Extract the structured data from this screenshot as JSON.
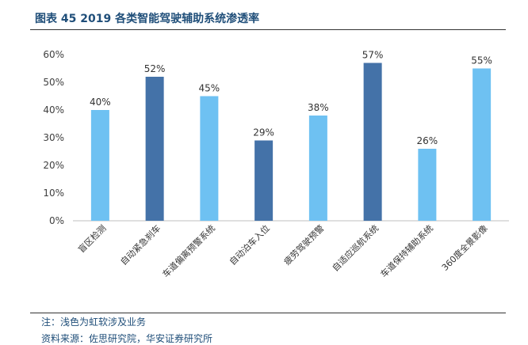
{
  "header": {
    "title": "图表 45 2019 各类智能驾驶辅助系统渗透率"
  },
  "footer": {
    "note": "注：浅色为虹软涉及业务",
    "source": "资料来源：佐思研究院，华安证券研究所"
  },
  "colors": {
    "light": "#6EC1F2",
    "dark": "#4472A8",
    "title": "#1f4e79"
  },
  "chart_data": {
    "type": "bar",
    "title": "",
    "xlabel": "",
    "ylabel": "",
    "categories": [
      "盲区检测",
      "自动紧急刹车",
      "车道偏离预警系统",
      "自动泊车入位",
      "疲劳驾驶预警",
      "自适应巡航系统",
      "车道保持辅助系统",
      "360度全景影像"
    ],
    "values": [
      40,
      52,
      45,
      29,
      38,
      57,
      26,
      55
    ],
    "value_labels": [
      "40%",
      "52%",
      "45%",
      "29%",
      "38%",
      "57%",
      "26%",
      "55%"
    ],
    "shade": [
      "light",
      "dark",
      "light",
      "dark",
      "light",
      "dark",
      "light",
      "light"
    ],
    "ylim": [
      0,
      60
    ],
    "yticks": [
      "0%",
      "10%",
      "20%",
      "30%",
      "40%",
      "50%",
      "60%"
    ],
    "grid": false,
    "legend": "none"
  }
}
